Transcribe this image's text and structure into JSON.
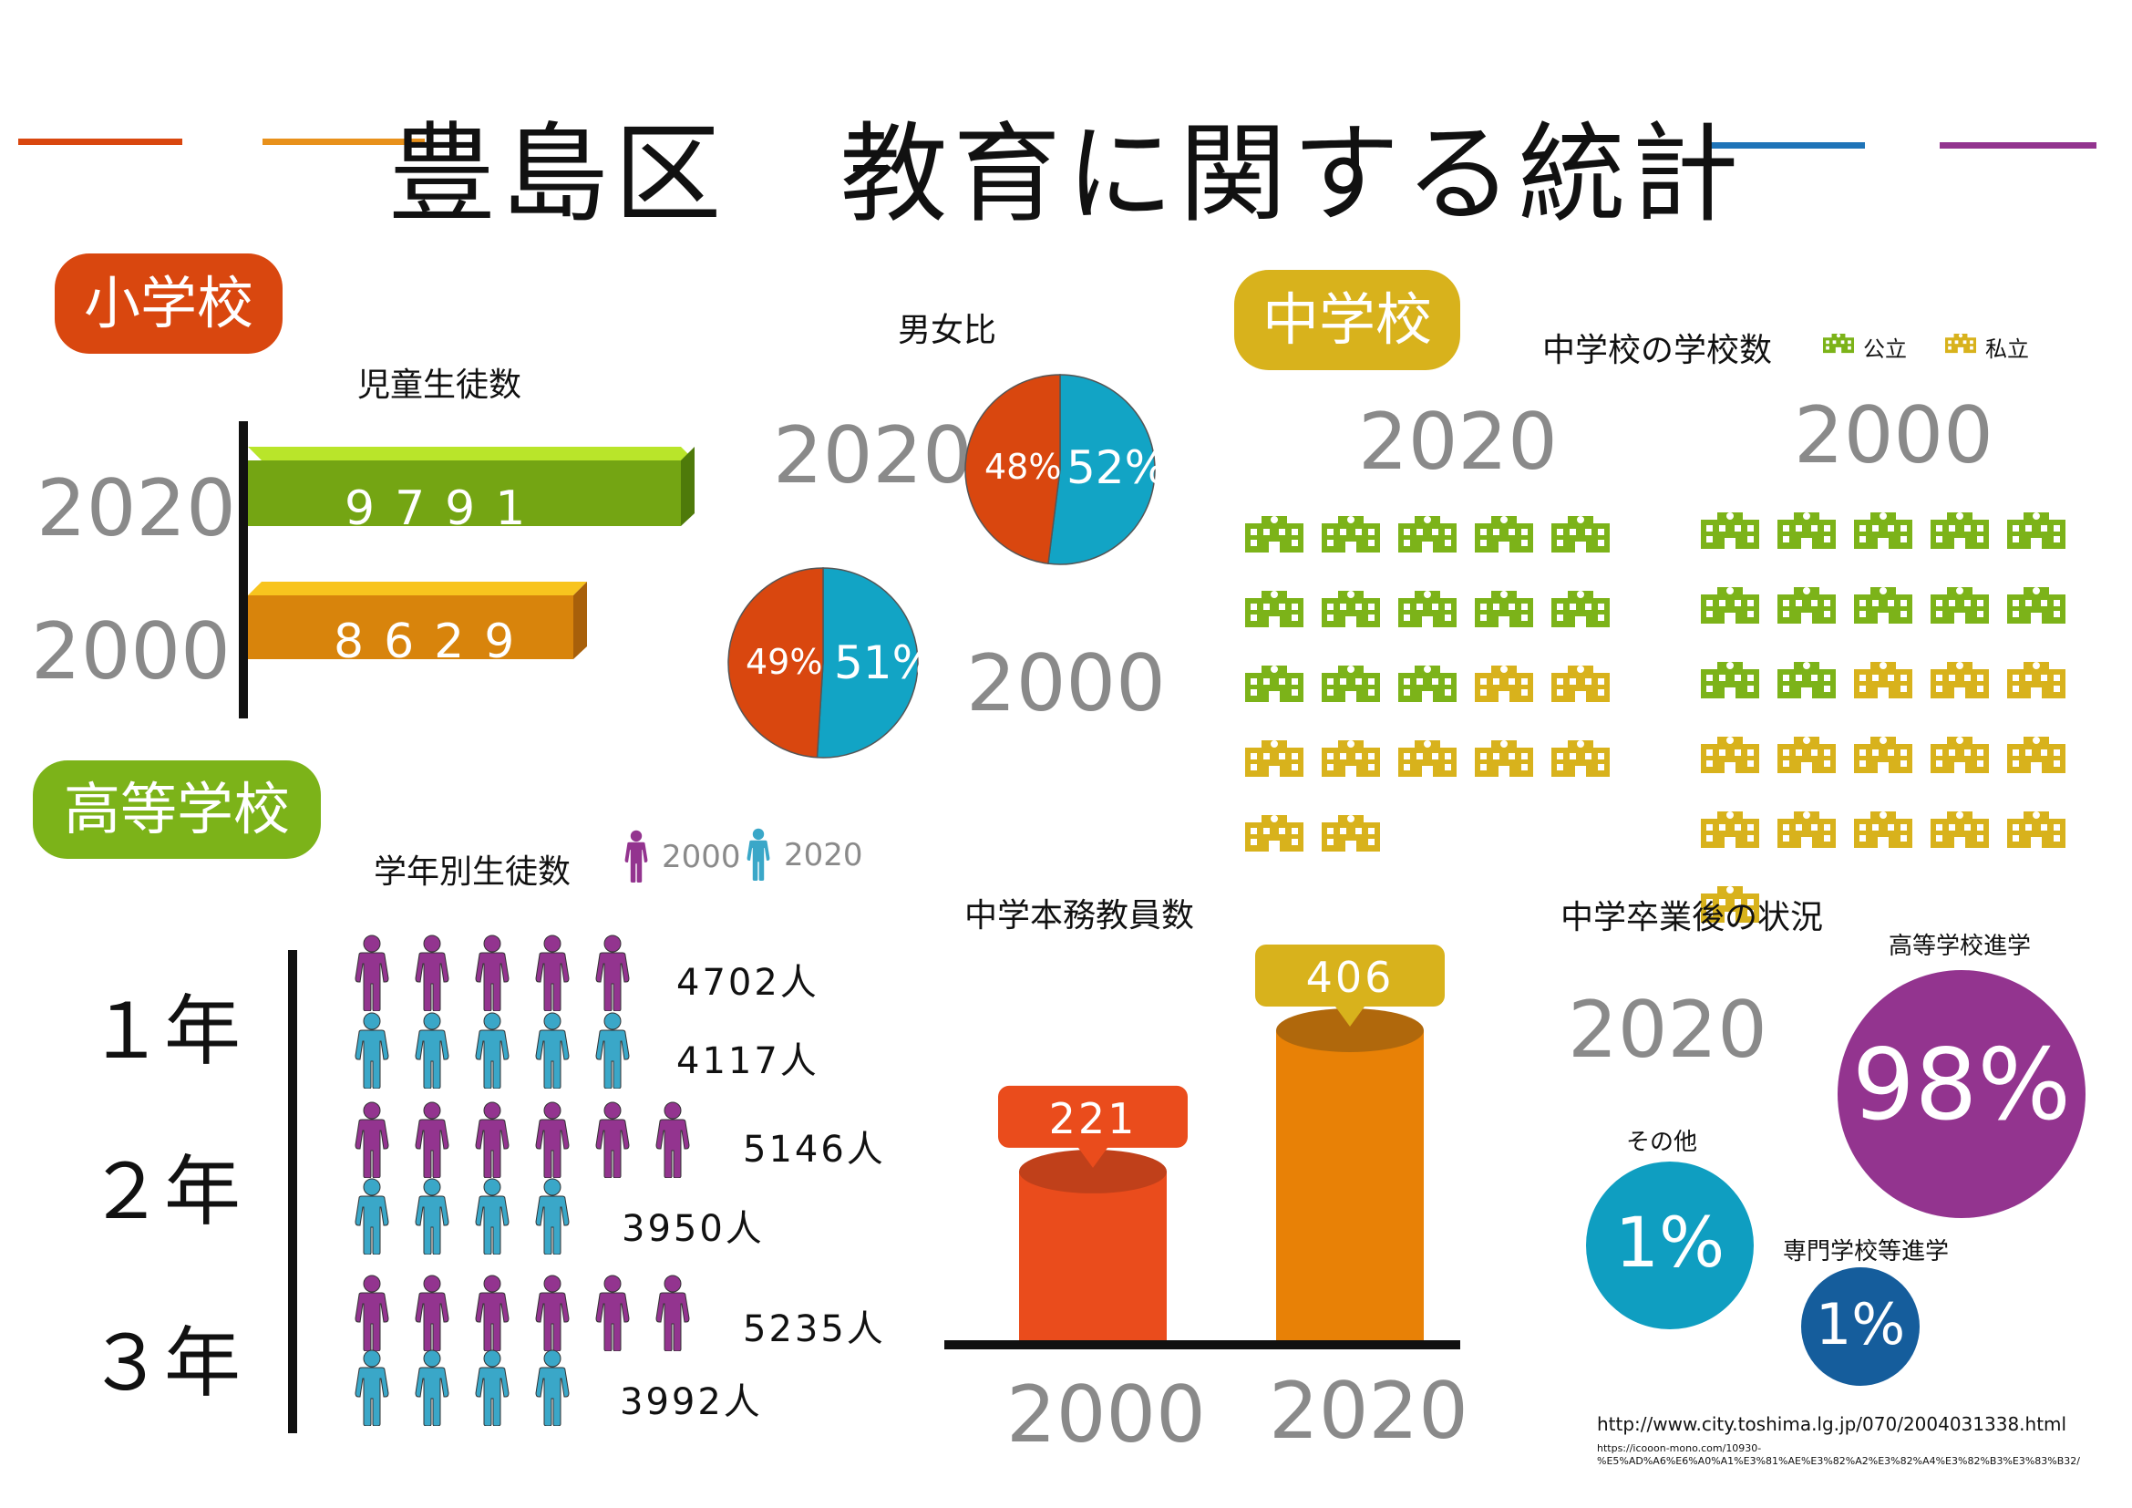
{
  "title": "豊島区　教育に関する統計",
  "colors": {
    "red": "#d9470f",
    "orange": "#e8911b",
    "blue": "#1f74b8",
    "purple": "#93348f",
    "green": "#7cb319",
    "yellow": "#d8b21c",
    "teal": "#12a4c5",
    "cyan_person": "#3aa7c8"
  },
  "elementary": {
    "badge": "小学校",
    "students_title": "児童生徒数",
    "rows": [
      {
        "year": "2020",
        "value": "9791"
      },
      {
        "year": "2000",
        "value": "8629"
      }
    ],
    "gender_title": "男女比",
    "pies": [
      {
        "year": "2020",
        "male_label": "52%",
        "female_label": "48%",
        "male": 52,
        "female": 48
      },
      {
        "year": "2000",
        "male_label": "51%",
        "female_label": "49%",
        "male": 51,
        "female": 49
      }
    ]
  },
  "middle": {
    "badge": "中学校",
    "schools_title": "中学校の学校数",
    "legend": [
      {
        "label": "公立",
        "icon": "school-building-icon",
        "color": "#7cb319"
      },
      {
        "label": "私立",
        "icon": "school-building-icon",
        "color": "#d8b21c"
      }
    ],
    "groups": [
      {
        "year": "2020",
        "public": 13,
        "private": 9
      },
      {
        "year": "2000",
        "public": 12,
        "private": 14
      }
    ],
    "teachers_title": "中学本務教員数",
    "teachers": [
      {
        "year": "2000",
        "value": 221,
        "label": "221"
      },
      {
        "year": "2020",
        "value": 406,
        "label": "406"
      }
    ],
    "after_title": "中学卒業後の状況",
    "after_year": "2020",
    "after": [
      {
        "label": "高等学校進学",
        "value": "98%"
      },
      {
        "label": "その他",
        "value": "1%"
      },
      {
        "label": "専門学校等進学",
        "value": "1%"
      }
    ]
  },
  "high": {
    "badge": "高等学校",
    "grade_title": "学年別生徒数",
    "legend": [
      {
        "label": "2000",
        "icon": "person-icon",
        "color": "#93348f"
      },
      {
        "label": "2020",
        "icon": "person-icon",
        "color": "#3aa7c8"
      }
    ],
    "grades": [
      {
        "grade": "１年",
        "purple_count": 5,
        "blue_count": 5,
        "y2000": "4702人",
        "y2020": "4117人"
      },
      {
        "grade": "２年",
        "purple_count": 6,
        "blue_count": 4,
        "y2000": "5146人",
        "y2020": "3950人"
      },
      {
        "grade": "３年",
        "purple_count": 6,
        "blue_count": 4,
        "y2000": "5235人",
        "y2020": "3992人"
      }
    ]
  },
  "sources": {
    "url1": "http://www.city.toshima.lg.jp/070/2004031338.html",
    "url2_line1": "https://icooon-mono.com/10930-",
    "url2_line2": "%E5%AD%A6%E6%A0%A1%E3%81%AE%E3%82%A2%E3%82%A4%E3%82%B3%E3%83%B32/"
  }
}
